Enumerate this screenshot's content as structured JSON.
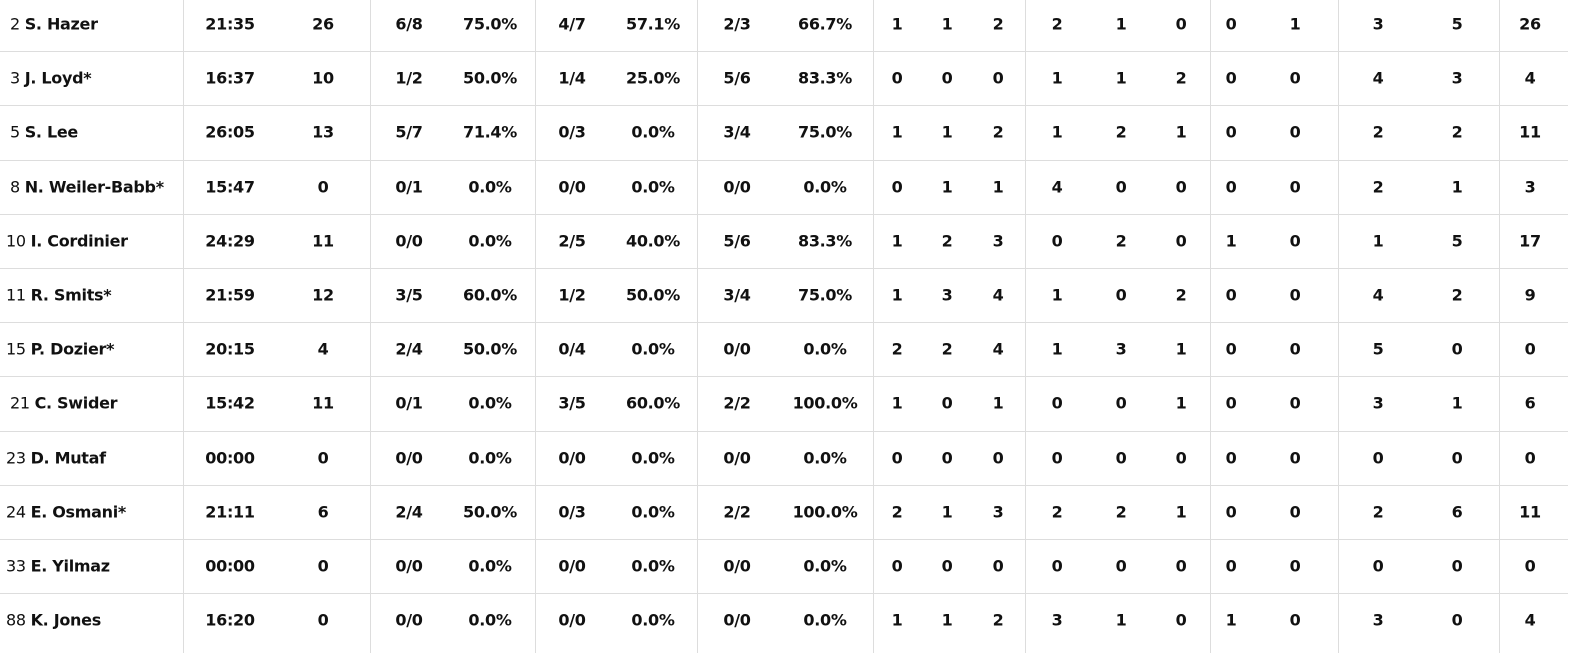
{
  "table": {
    "rows": [
      {
        "number": "2",
        "name": "S. Hazer",
        "stats": [
          "21:35",
          "26",
          "6/8",
          "75.0%",
          "4/7",
          "57.1%",
          "2/3",
          "66.7%",
          "1",
          "1",
          "2",
          "2",
          "1",
          "0",
          "0",
          "1",
          "3",
          "5",
          "26"
        ]
      },
      {
        "number": "3",
        "name": "J. Loyd*",
        "stats": [
          "16:37",
          "10",
          "1/2",
          "50.0%",
          "1/4",
          "25.0%",
          "5/6",
          "83.3%",
          "0",
          "0",
          "0",
          "1",
          "1",
          "2",
          "0",
          "0",
          "4",
          "3",
          "4"
        ]
      },
      {
        "number": "5",
        "name": "S. Lee",
        "stats": [
          "26:05",
          "13",
          "5/7",
          "71.4%",
          "0/3",
          "0.0%",
          "3/4",
          "75.0%",
          "1",
          "1",
          "2",
          "1",
          "2",
          "1",
          "0",
          "0",
          "2",
          "2",
          "11"
        ]
      },
      {
        "number": "8",
        "name": "N. Weiler-Babb*",
        "stats": [
          "15:47",
          "0",
          "0/1",
          "0.0%",
          "0/0",
          "0.0%",
          "0/0",
          "0.0%",
          "0",
          "1",
          "1",
          "4",
          "0",
          "0",
          "0",
          "0",
          "2",
          "1",
          "3"
        ]
      },
      {
        "number": "10",
        "name": "I. Cordinier",
        "stats": [
          "24:29",
          "11",
          "0/0",
          "0.0%",
          "2/5",
          "40.0%",
          "5/6",
          "83.3%",
          "1",
          "2",
          "3",
          "0",
          "2",
          "0",
          "1",
          "0",
          "1",
          "5",
          "17"
        ]
      },
      {
        "number": "11",
        "name": "R. Smits*",
        "stats": [
          "21:59",
          "12",
          "3/5",
          "60.0%",
          "1/2",
          "50.0%",
          "3/4",
          "75.0%",
          "1",
          "3",
          "4",
          "1",
          "0",
          "2",
          "0",
          "0",
          "4",
          "2",
          "9"
        ]
      },
      {
        "number": "15",
        "name": "P. Dozier*",
        "stats": [
          "20:15",
          "4",
          "2/4",
          "50.0%",
          "0/4",
          "0.0%",
          "0/0",
          "0.0%",
          "2",
          "2",
          "4",
          "1",
          "3",
          "1",
          "0",
          "0",
          "5",
          "0",
          "0"
        ]
      },
      {
        "number": "21",
        "name": "C. Swider",
        "stats": [
          "15:42",
          "11",
          "0/1",
          "0.0%",
          "3/5",
          "60.0%",
          "2/2",
          "100.0%",
          "1",
          "0",
          "1",
          "0",
          "0",
          "1",
          "0",
          "0",
          "3",
          "1",
          "6"
        ]
      },
      {
        "number": "23",
        "name": "D. Mutaf",
        "stats": [
          "00:00",
          "0",
          "0/0",
          "0.0%",
          "0/0",
          "0.0%",
          "0/0",
          "0.0%",
          "0",
          "0",
          "0",
          "0",
          "0",
          "0",
          "0",
          "0",
          "0",
          "0",
          "0"
        ]
      },
      {
        "number": "24",
        "name": "E. Osmani*",
        "stats": [
          "21:11",
          "6",
          "2/4",
          "50.0%",
          "0/3",
          "0.0%",
          "2/2",
          "100.0%",
          "2",
          "1",
          "3",
          "2",
          "2",
          "1",
          "0",
          "0",
          "2",
          "6",
          "11"
        ]
      },
      {
        "number": "33",
        "name": "E. Yilmaz",
        "stats": [
          "00:00",
          "0",
          "0/0",
          "0.0%",
          "0/0",
          "0.0%",
          "0/0",
          "0.0%",
          "0",
          "0",
          "0",
          "0",
          "0",
          "0",
          "0",
          "0",
          "0",
          "0",
          "0"
        ]
      },
      {
        "number": "88",
        "name": "K. Jones",
        "stats": [
          "16:20",
          "0",
          "0/0",
          "0.0%",
          "0/0",
          "0.0%",
          "0/0",
          "0.0%",
          "1",
          "1",
          "2",
          "3",
          "1",
          "0",
          "1",
          "0",
          "3",
          "0",
          "4"
        ]
      }
    ]
  }
}
